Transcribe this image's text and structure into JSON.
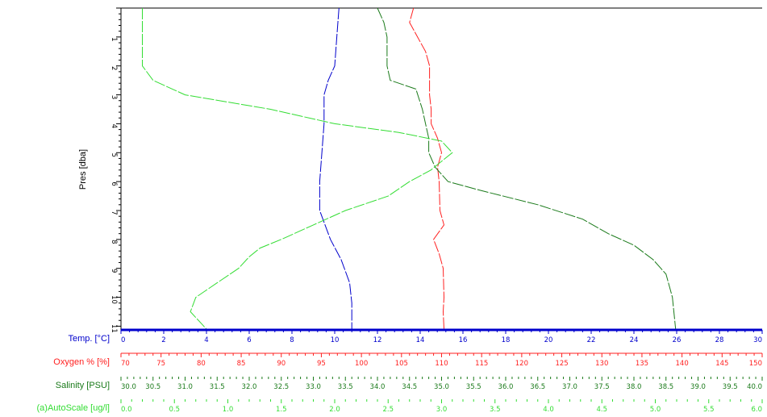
{
  "colors": {
    "temp": "#0000cc",
    "oxygen": "#ff2020",
    "salinity": "#1a7a1a",
    "autoscale": "#33dd33",
    "frame": "#000000",
    "background": "#ffffff"
  },
  "chart_data": {
    "type": "line",
    "title": "",
    "ylabel": "Pres [dba]",
    "y_axis": {
      "range": [
        0,
        11.1
      ],
      "inverted": true,
      "ticks": [
        1,
        2,
        3,
        4,
        5,
        6,
        7,
        8,
        9,
        10,
        11
      ],
      "tick_labels": [
        "1",
        "2",
        "3",
        "4",
        "5",
        "6",
        "7",
        "8",
        "9",
        "10",
        "11"
      ]
    },
    "grid": false,
    "legend": "none",
    "x_axes": [
      {
        "label": "Temp. [°C]",
        "color": "#0000cc",
        "range": [
          0,
          30
        ],
        "ticks": [
          0,
          2,
          4,
          6,
          8,
          10,
          12,
          14,
          16,
          18,
          20,
          22,
          24,
          26,
          28,
          30
        ],
        "tick_labels": [
          "0",
          "2",
          "4",
          "6",
          "8",
          "10",
          "12",
          "14",
          "16",
          "18",
          "20",
          "22",
          "24",
          "26",
          "28",
          "30"
        ]
      },
      {
        "label": "Oxygen % [%]",
        "color": "#ff2020",
        "range": [
          70,
          150
        ],
        "ticks": [
          70,
          75,
          80,
          85,
          90,
          95,
          100,
          105,
          110,
          115,
          120,
          125,
          130,
          135,
          140,
          145,
          150
        ],
        "tick_labels": [
          "70",
          "75",
          "80",
          "85",
          "90",
          "95",
          "100",
          "105",
          "110",
          "115",
          "120",
          "125",
          "130",
          "135",
          "140",
          "145",
          "150"
        ]
      },
      {
        "label": "Salinity [PSU]",
        "color": "#1a7a1a",
        "range": [
          30,
          40
        ],
        "ticks": [
          30,
          30.5,
          31,
          31.5,
          32,
          32.5,
          33,
          33.5,
          34,
          34.5,
          35,
          35.5,
          36,
          36.5,
          37,
          37.5,
          38,
          38.5,
          39,
          39.5,
          40
        ],
        "tick_labels": [
          "30.0",
          "30.5",
          "31.0",
          "31.5",
          "32.0",
          "32.5",
          "33.0",
          "33.5",
          "34.0",
          "34.5",
          "35.0",
          "35.5",
          "36.0",
          "36.5",
          "37.0",
          "37.5",
          "38.0",
          "38.5",
          "39.0",
          "39.5",
          "40.0"
        ]
      },
      {
        "label": "(a)AutoScale [ug/l]",
        "color": "#33dd33",
        "range": [
          0,
          6
        ],
        "ticks": [
          0,
          0.5,
          1,
          1.5,
          2,
          2.5,
          3,
          3.5,
          4,
          4.5,
          5,
          5.5,
          6
        ],
        "tick_labels": [
          "0.0",
          "0.5",
          "1.0",
          "1.5",
          "2.0",
          "2.5",
          "3.0",
          "3.5",
          "4.0",
          "4.5",
          "5.0",
          "5.5",
          "6.0"
        ]
      }
    ],
    "series": [
      {
        "axis": 0,
        "points": [
          [
            10.2,
            0
          ],
          [
            10.1,
            1
          ],
          [
            10.0,
            2
          ],
          [
            9.7,
            2.5
          ],
          [
            9.5,
            3
          ],
          [
            9.5,
            4
          ],
          [
            9.4,
            5
          ],
          [
            9.3,
            6
          ],
          [
            9.3,
            7
          ],
          [
            9.8,
            8
          ],
          [
            10.3,
            8.7
          ],
          [
            10.7,
            9.5
          ],
          [
            10.8,
            10.2
          ],
          [
            10.8,
            11.1
          ]
        ]
      },
      {
        "axis": 1,
        "points": [
          [
            106.5,
            0
          ],
          [
            106.0,
            0.5
          ],
          [
            107.0,
            1
          ],
          [
            108.0,
            1.5
          ],
          [
            108.5,
            2
          ],
          [
            108.5,
            3
          ],
          [
            108.7,
            3.5
          ],
          [
            108.7,
            4
          ],
          [
            109.5,
            4.5
          ],
          [
            110.0,
            5
          ],
          [
            109.5,
            5.5
          ],
          [
            109.7,
            6
          ],
          [
            109.8,
            7
          ],
          [
            110.3,
            7.5
          ],
          [
            109.0,
            8
          ],
          [
            109.7,
            8.5
          ],
          [
            110.2,
            9
          ],
          [
            110.3,
            10
          ],
          [
            110.2,
            10.5
          ],
          [
            110.3,
            11.1
          ]
        ]
      },
      {
        "axis": 2,
        "points": [
          [
            34.0,
            0
          ],
          [
            34.1,
            0.5
          ],
          [
            34.15,
            1
          ],
          [
            34.15,
            2
          ],
          [
            34.2,
            2.5
          ],
          [
            34.6,
            2.8
          ],
          [
            34.7,
            3.5
          ],
          [
            34.75,
            4
          ],
          [
            34.8,
            4.5
          ],
          [
            34.8,
            5
          ],
          [
            34.9,
            5.5
          ],
          [
            35.1,
            6
          ],
          [
            35.6,
            6.3
          ],
          [
            36.5,
            6.8
          ],
          [
            37.2,
            7.3
          ],
          [
            37.6,
            7.8
          ],
          [
            38.0,
            8.2
          ],
          [
            38.3,
            8.7
          ],
          [
            38.5,
            9.2
          ],
          [
            38.6,
            10
          ],
          [
            38.65,
            11.1
          ]
        ]
      },
      {
        "axis": 3,
        "points": [
          [
            0.2,
            0
          ],
          [
            0.2,
            1
          ],
          [
            0.2,
            2
          ],
          [
            0.3,
            2.5
          ],
          [
            0.6,
            3
          ],
          [
            1.4,
            3.5
          ],
          [
            2.0,
            4.0
          ],
          [
            2.6,
            4.3
          ],
          [
            3.0,
            4.6
          ],
          [
            3.1,
            5.0
          ],
          [
            3.0,
            5.3
          ],
          [
            2.9,
            5.6
          ],
          [
            2.7,
            6.0
          ],
          [
            2.5,
            6.5
          ],
          [
            2.1,
            7.0
          ],
          [
            1.8,
            7.5
          ],
          [
            1.5,
            8.0
          ],
          [
            1.3,
            8.3
          ],
          [
            1.2,
            8.6
          ],
          [
            1.1,
            9.0
          ],
          [
            0.9,
            9.5
          ],
          [
            0.7,
            10.0
          ],
          [
            0.65,
            10.5
          ],
          [
            0.75,
            10.9
          ],
          [
            0.8,
            11.1
          ]
        ]
      }
    ]
  }
}
